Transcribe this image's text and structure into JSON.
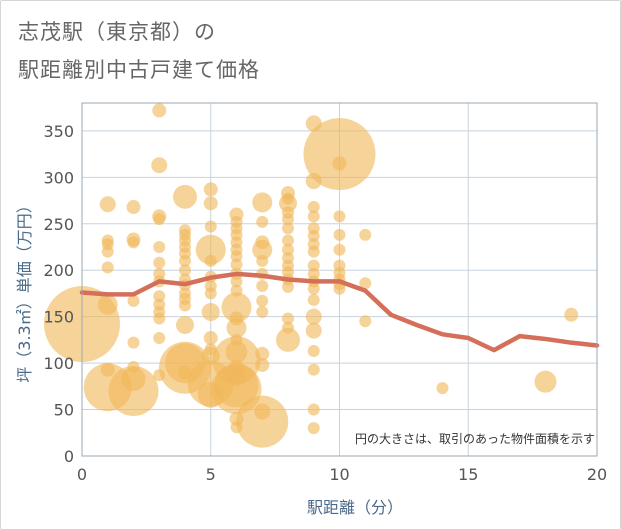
{
  "title": [
    "志茂駅（東京都）の",
    "駅距離別中古戸建て価格"
  ],
  "chart_data": {
    "type": "scatter",
    "xlabel": "駅距離（分）",
    "ylabel": "坪（3.3㎡）単価（万円）",
    "xlim": [
      0,
      20
    ],
    "ylim": [
      0,
      380
    ],
    "x_ticks": [
      "0",
      "5",
      "10",
      "15",
      "20"
    ],
    "y_ticks": [
      "0",
      "50",
      "100",
      "150",
      "200",
      "250",
      "300",
      "350"
    ],
    "note": "円の大きさは、取引のあった物件面積を示す",
    "grid": true,
    "colors": {
      "bubble": "#f0b85a",
      "line": "#d4705a",
      "grid": "#c8d3de",
      "axis": "#9aa8b4"
    },
    "points": [
      {
        "x": 0,
        "y": 142,
        "s": 38
      },
      {
        "x": 1,
        "y": 271,
        "s": 8
      },
      {
        "x": 1,
        "y": 232,
        "s": 6
      },
      {
        "x": 1,
        "y": 228,
        "s": 6
      },
      {
        "x": 1,
        "y": 220,
        "s": 6
      },
      {
        "x": 1,
        "y": 203,
        "s": 6
      },
      {
        "x": 1,
        "y": 163,
        "s": 10
      },
      {
        "x": 1,
        "y": 93,
        "s": 7
      },
      {
        "x": 1,
        "y": 74,
        "s": 24
      },
      {
        "x": 2,
        "y": 268,
        "s": 7
      },
      {
        "x": 2,
        "y": 233,
        "s": 7
      },
      {
        "x": 2,
        "y": 230,
        "s": 6
      },
      {
        "x": 2,
        "y": 167,
        "s": 6
      },
      {
        "x": 2,
        "y": 122,
        "s": 6
      },
      {
        "x": 2,
        "y": 96,
        "s": 6
      },
      {
        "x": 2,
        "y": 83,
        "s": 12
      },
      {
        "x": 2,
        "y": 70,
        "s": 25
      },
      {
        "x": 3,
        "y": 372,
        "s": 7
      },
      {
        "x": 3,
        "y": 313,
        "s": 8
      },
      {
        "x": 3,
        "y": 258,
        "s": 7
      },
      {
        "x": 3,
        "y": 255,
        "s": 6
      },
      {
        "x": 3,
        "y": 225,
        "s": 6
      },
      {
        "x": 3,
        "y": 208,
        "s": 6
      },
      {
        "x": 3,
        "y": 196,
        "s": 6
      },
      {
        "x": 3,
        "y": 188,
        "s": 6
      },
      {
        "x": 3,
        "y": 172,
        "s": 6
      },
      {
        "x": 3,
        "y": 163,
        "s": 6
      },
      {
        "x": 3,
        "y": 155,
        "s": 6
      },
      {
        "x": 3,
        "y": 148,
        "s": 6
      },
      {
        "x": 3,
        "y": 127,
        "s": 6
      },
      {
        "x": 3,
        "y": 87,
        "s": 6
      },
      {
        "x": 4,
        "y": 279,
        "s": 12
      },
      {
        "x": 4,
        "y": 243,
        "s": 6
      },
      {
        "x": 4,
        "y": 238,
        "s": 6
      },
      {
        "x": 4,
        "y": 232,
        "s": 6
      },
      {
        "x": 4,
        "y": 225,
        "s": 6
      },
      {
        "x": 4,
        "y": 218,
        "s": 6
      },
      {
        "x": 4,
        "y": 210,
        "s": 6
      },
      {
        "x": 4,
        "y": 200,
        "s": 6
      },
      {
        "x": 4,
        "y": 190,
        "s": 6
      },
      {
        "x": 4,
        "y": 184,
        "s": 6
      },
      {
        "x": 4,
        "y": 175,
        "s": 6
      },
      {
        "x": 4,
        "y": 169,
        "s": 6
      },
      {
        "x": 4,
        "y": 162,
        "s": 6
      },
      {
        "x": 4,
        "y": 141,
        "s": 9
      },
      {
        "x": 4,
        "y": 100,
        "s": 20
      },
      {
        "x": 4,
        "y": 95,
        "s": 26
      },
      {
        "x": 4,
        "y": 90,
        "s": 7
      },
      {
        "x": 5,
        "y": 287,
        "s": 7
      },
      {
        "x": 5,
        "y": 272,
        "s": 7
      },
      {
        "x": 5,
        "y": 247,
        "s": 6
      },
      {
        "x": 5,
        "y": 222,
        "s": 15
      },
      {
        "x": 5,
        "y": 210,
        "s": 6
      },
      {
        "x": 5,
        "y": 193,
        "s": 6
      },
      {
        "x": 5,
        "y": 183,
        "s": 6
      },
      {
        "x": 5,
        "y": 175,
        "s": 6
      },
      {
        "x": 5,
        "y": 155,
        "s": 9
      },
      {
        "x": 5,
        "y": 127,
        "s": 7
      },
      {
        "x": 5,
        "y": 115,
        "s": 6
      },
      {
        "x": 5,
        "y": 108,
        "s": 9
      },
      {
        "x": 5,
        "y": 78,
        "s": 23
      },
      {
        "x": 5,
        "y": 66,
        "s": 13
      },
      {
        "x": 6,
        "y": 260,
        "s": 7
      },
      {
        "x": 6,
        "y": 252,
        "s": 6
      },
      {
        "x": 6,
        "y": 245,
        "s": 6
      },
      {
        "x": 6,
        "y": 238,
        "s": 6
      },
      {
        "x": 6,
        "y": 230,
        "s": 6
      },
      {
        "x": 6,
        "y": 222,
        "s": 6
      },
      {
        "x": 6,
        "y": 215,
        "s": 6
      },
      {
        "x": 6,
        "y": 206,
        "s": 6
      },
      {
        "x": 6,
        "y": 196,
        "s": 6
      },
      {
        "x": 6,
        "y": 188,
        "s": 6
      },
      {
        "x": 6,
        "y": 178,
        "s": 6
      },
      {
        "x": 6,
        "y": 160,
        "s": 15
      },
      {
        "x": 6,
        "y": 148,
        "s": 7
      },
      {
        "x": 6,
        "y": 138,
        "s": 10
      },
      {
        "x": 6,
        "y": 125,
        "s": 6
      },
      {
        "x": 6,
        "y": 112,
        "s": 11
      },
      {
        "x": 6,
        "y": 103,
        "s": 24
      },
      {
        "x": 6,
        "y": 95,
        "s": 8
      },
      {
        "x": 6,
        "y": 85,
        "s": 9
      },
      {
        "x": 6,
        "y": 76,
        "s": 22
      },
      {
        "x": 6,
        "y": 72,
        "s": 25
      },
      {
        "x": 6,
        "y": 40,
        "s": 7
      },
      {
        "x": 6,
        "y": 31,
        "s": 6
      },
      {
        "x": 7,
        "y": 273,
        "s": 10
      },
      {
        "x": 7,
        "y": 252,
        "s": 6
      },
      {
        "x": 7,
        "y": 230,
        "s": 7
      },
      {
        "x": 7,
        "y": 222,
        "s": 10
      },
      {
        "x": 7,
        "y": 210,
        "s": 6
      },
      {
        "x": 7,
        "y": 196,
        "s": 6
      },
      {
        "x": 7,
        "y": 183,
        "s": 6
      },
      {
        "x": 7,
        "y": 167,
        "s": 6
      },
      {
        "x": 7,
        "y": 155,
        "s": 6
      },
      {
        "x": 7,
        "y": 110,
        "s": 7
      },
      {
        "x": 7,
        "y": 98,
        "s": 7
      },
      {
        "x": 7,
        "y": 37,
        "s": 26
      },
      {
        "x": 7,
        "y": 48,
        "s": 8
      },
      {
        "x": 8,
        "y": 283,
        "s": 7
      },
      {
        "x": 8,
        "y": 277,
        "s": 6
      },
      {
        "x": 8,
        "y": 272,
        "s": 9
      },
      {
        "x": 8,
        "y": 262,
        "s": 6
      },
      {
        "x": 8,
        "y": 255,
        "s": 6
      },
      {
        "x": 8,
        "y": 245,
        "s": 6
      },
      {
        "x": 8,
        "y": 232,
        "s": 6
      },
      {
        "x": 8,
        "y": 222,
        "s": 6
      },
      {
        "x": 8,
        "y": 213,
        "s": 6
      },
      {
        "x": 8,
        "y": 205,
        "s": 6
      },
      {
        "x": 8,
        "y": 198,
        "s": 6
      },
      {
        "x": 8,
        "y": 190,
        "s": 6
      },
      {
        "x": 8,
        "y": 182,
        "s": 6
      },
      {
        "x": 8,
        "y": 148,
        "s": 6
      },
      {
        "x": 8,
        "y": 138,
        "s": 6
      },
      {
        "x": 8,
        "y": 125,
        "s": 12
      },
      {
        "x": 9,
        "y": 358,
        "s": 8
      },
      {
        "x": 9,
        "y": 296,
        "s": 8
      },
      {
        "x": 9,
        "y": 268,
        "s": 6
      },
      {
        "x": 9,
        "y": 258,
        "s": 6
      },
      {
        "x": 9,
        "y": 245,
        "s": 6
      },
      {
        "x": 9,
        "y": 237,
        "s": 6
      },
      {
        "x": 9,
        "y": 228,
        "s": 6
      },
      {
        "x": 9,
        "y": 220,
        "s": 6
      },
      {
        "x": 9,
        "y": 205,
        "s": 6
      },
      {
        "x": 9,
        "y": 196,
        "s": 6
      },
      {
        "x": 9,
        "y": 188,
        "s": 6
      },
      {
        "x": 9,
        "y": 180,
        "s": 6
      },
      {
        "x": 9,
        "y": 168,
        "s": 6
      },
      {
        "x": 9,
        "y": 150,
        "s": 8
      },
      {
        "x": 9,
        "y": 135,
        "s": 8
      },
      {
        "x": 9,
        "y": 113,
        "s": 6
      },
      {
        "x": 9,
        "y": 93,
        "s": 6
      },
      {
        "x": 9,
        "y": 50,
        "s": 6
      },
      {
        "x": 9,
        "y": 30,
        "s": 6
      },
      {
        "x": 10,
        "y": 325,
        "s": 36
      },
      {
        "x": 10,
        "y": 315,
        "s": 7
      },
      {
        "x": 10,
        "y": 258,
        "s": 6
      },
      {
        "x": 10,
        "y": 238,
        "s": 6
      },
      {
        "x": 10,
        "y": 222,
        "s": 6
      },
      {
        "x": 10,
        "y": 205,
        "s": 6
      },
      {
        "x": 10,
        "y": 197,
        "s": 6
      },
      {
        "x": 10,
        "y": 190,
        "s": 6
      },
      {
        "x": 10,
        "y": 185,
        "s": 6
      },
      {
        "x": 10,
        "y": 180,
        "s": 6
      },
      {
        "x": 11,
        "y": 238,
        "s": 6
      },
      {
        "x": 11,
        "y": 186,
        "s": 6
      },
      {
        "x": 11,
        "y": 145,
        "s": 6
      },
      {
        "x": 14,
        "y": 73,
        "s": 6
      },
      {
        "x": 18,
        "y": 80,
        "s": 11
      },
      {
        "x": 19,
        "y": 152,
        "s": 7
      }
    ],
    "series": [
      {
        "x": [
          0,
          1,
          2,
          3,
          4,
          5,
          6,
          7,
          8,
          9,
          10,
          11,
          12,
          13,
          14,
          15,
          16,
          17,
          18,
          19,
          20
        ],
        "values": [
          176,
          174,
          174,
          188,
          185,
          192,
          196,
          194,
          190,
          188,
          188,
          178,
          152,
          141,
          131,
          127,
          114,
          129,
          126,
          122,
          119
        ]
      }
    ]
  }
}
